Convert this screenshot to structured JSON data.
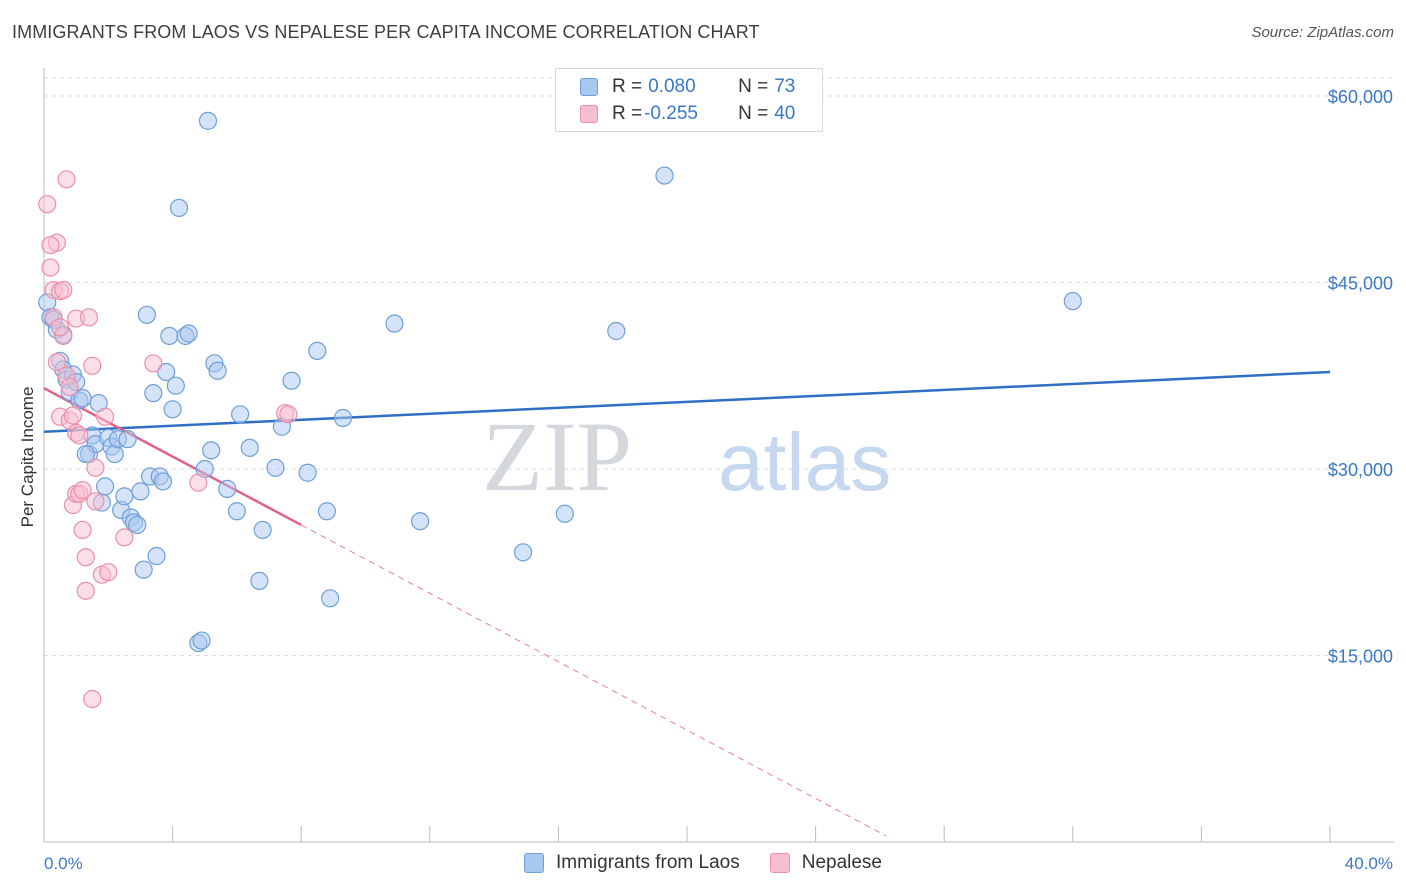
{
  "title": "IMMIGRANTS FROM LAOS VS NEPALESE PER CAPITA INCOME CORRELATION CHART",
  "source": "Source: ZipAtlas.com",
  "watermark": {
    "zip": "ZIP",
    "atlas": "atlas"
  },
  "legend": {
    "rows": [
      {
        "r_label": "R = ",
        "r_value": "0.080",
        "n_label": "N = ",
        "n_value": "73"
      },
      {
        "r_label": "R = ",
        "r_value": "-0.255",
        "n_label": "N = ",
        "n_value": "40"
      }
    ]
  },
  "chart_data": {
    "type": "scatter",
    "title": "IMMIGRANTS FROM LAOS VS NEPALESE PER CAPITA INCOME CORRELATION CHART",
    "xlabel": "",
    "ylabel": "Per Capita Income",
    "xlim": [
      0,
      40
    ],
    "ylim": [
      0,
      62000
    ],
    "x_tick_labels": [
      "0.0%",
      "40.0%"
    ],
    "y_ticks": [
      15000,
      30000,
      45000,
      60000
    ],
    "y_tick_labels": [
      "$15,000",
      "$30,000",
      "$45,000",
      "$60,000"
    ],
    "colors": {
      "laos": "#a9c8f0",
      "laos_edge": "#6f9fd8",
      "laos_line": "#2f6fc4",
      "nepal": "#f6bfd0",
      "nepal_edge": "#ec8fae",
      "nepal_line": "#e0608e",
      "tick": "#3a78c9"
    },
    "series": [
      {
        "name": "Immigrants from Laos",
        "R": 0.08,
        "N": 73,
        "trend": {
          "x": [
            0,
            40
          ],
          "y": [
            33000,
            37800
          ]
        },
        "points": [
          [
            0.1,
            43400
          ],
          [
            0.2,
            42200
          ],
          [
            0.3,
            42000
          ],
          [
            0.4,
            41200
          ],
          [
            0.5,
            38700
          ],
          [
            0.6,
            38000
          ],
          [
            0.7,
            37200
          ],
          [
            0.8,
            36200
          ],
          [
            0.9,
            37600
          ],
          [
            1.0,
            37000
          ],
          [
            1.1,
            35500
          ],
          [
            1.2,
            35700
          ],
          [
            1.4,
            31200
          ],
          [
            1.5,
            32700
          ],
          [
            1.6,
            32000
          ],
          [
            1.7,
            35300
          ],
          [
            1.8,
            27300
          ],
          [
            1.9,
            28600
          ],
          [
            2.0,
            32500
          ],
          [
            2.1,
            31800
          ],
          [
            2.2,
            31200
          ],
          [
            2.3,
            32400
          ],
          [
            2.4,
            26700
          ],
          [
            2.5,
            27800
          ],
          [
            2.6,
            32400
          ],
          [
            2.7,
            26100
          ],
          [
            2.8,
            25700
          ],
          [
            2.9,
            25500
          ],
          [
            3.0,
            28200
          ],
          [
            3.1,
            21900
          ],
          [
            3.2,
            42400
          ],
          [
            3.3,
            29400
          ],
          [
            3.4,
            36100
          ],
          [
            3.5,
            23000
          ],
          [
            3.6,
            29400
          ],
          [
            3.7,
            29000
          ],
          [
            3.8,
            37800
          ],
          [
            3.9,
            40700
          ],
          [
            4.0,
            34800
          ],
          [
            4.1,
            36700
          ],
          [
            4.2,
            51000
          ],
          [
            4.4,
            40700
          ],
          [
            4.5,
            40900
          ],
          [
            4.8,
            16000
          ],
          [
            4.9,
            16200
          ],
          [
            5.0,
            30000
          ],
          [
            5.1,
            58000
          ],
          [
            5.2,
            31500
          ],
          [
            5.3,
            38500
          ],
          [
            5.4,
            37900
          ],
          [
            5.7,
            28400
          ],
          [
            6.1,
            34400
          ],
          [
            6.0,
            26600
          ],
          [
            6.4,
            31700
          ],
          [
            6.7,
            21000
          ],
          [
            6.8,
            25100
          ],
          [
            7.2,
            30100
          ],
          [
            7.4,
            33400
          ],
          [
            7.7,
            37100
          ],
          [
            8.2,
            29700
          ],
          [
            8.5,
            39500
          ],
          [
            8.8,
            26600
          ],
          [
            8.9,
            19600
          ],
          [
            9.3,
            34100
          ],
          [
            10.9,
            41700
          ],
          [
            11.7,
            25800
          ],
          [
            14.9,
            23300
          ],
          [
            16.2,
            26400
          ],
          [
            17.8,
            41100
          ],
          [
            19.3,
            53600
          ],
          [
            32.0,
            43500
          ],
          [
            0.6,
            40800
          ],
          [
            1.3,
            31200
          ]
        ]
      },
      {
        "name": "Nepalese",
        "R": -0.255,
        "N": 40,
        "trend": {
          "x": [
            0,
            8
          ],
          "y": [
            36500,
            25500
          ]
        },
        "points": [
          [
            0.1,
            51300
          ],
          [
            0.2,
            46200
          ],
          [
            0.3,
            44400
          ],
          [
            0.4,
            48200
          ],
          [
            0.4,
            38600
          ],
          [
            0.5,
            44300
          ],
          [
            0.5,
            34200
          ],
          [
            0.6,
            44400
          ],
          [
            0.6,
            40700
          ],
          [
            0.7,
            37500
          ],
          [
            0.7,
            53300
          ],
          [
            0.8,
            33900
          ],
          [
            0.8,
            36600
          ],
          [
            0.9,
            27100
          ],
          [
            0.9,
            34300
          ],
          [
            1.0,
            28000
          ],
          [
            1.0,
            32900
          ],
          [
            1.0,
            42100
          ],
          [
            1.1,
            32700
          ],
          [
            1.1,
            28000
          ],
          [
            1.2,
            28300
          ],
          [
            1.2,
            25100
          ],
          [
            1.3,
            22900
          ],
          [
            1.3,
            20200
          ],
          [
            1.4,
            42200
          ],
          [
            1.5,
            11500
          ],
          [
            1.5,
            38300
          ],
          [
            1.6,
            27400
          ],
          [
            1.6,
            30100
          ],
          [
            1.8,
            21500
          ],
          [
            1.9,
            34200
          ],
          [
            2.0,
            21700
          ],
          [
            2.5,
            24500
          ],
          [
            3.4,
            38500
          ],
          [
            4.8,
            28900
          ],
          [
            7.5,
            34500
          ],
          [
            7.6,
            34400
          ],
          [
            0.3,
            42200
          ],
          [
            0.5,
            41400
          ],
          [
            0.2,
            48000
          ]
        ]
      }
    ]
  },
  "bottom_legend": {
    "laos": "Immigrants from Laos",
    "nepal": "Nepalese"
  }
}
